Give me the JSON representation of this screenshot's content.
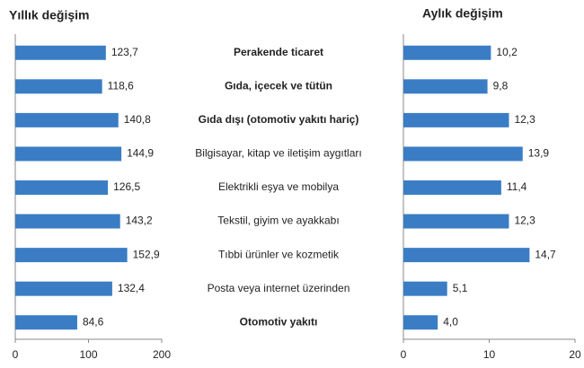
{
  "chart_data": [
    {
      "type": "hbar",
      "title": "Yıllık değişim",
      "color": "#3a7dc4",
      "categories": [
        "Perakende ticaret",
        "Gıda, içecek ve tütün",
        "Gıda dışı (otomotiv yakıtı hariç)",
        "Bilgisayar, kitap ve iletişim aygıtları",
        "Elektrikli eşya ve mobilya",
        "Tekstil, giyim ve ayakkabı",
        "Tıbbi ürünler ve kozmetik",
        "Posta veya internet üzerinden",
        "Otomotiv yakıtı"
      ],
      "values": [
        123.7,
        118.6,
        140.8,
        144.9,
        126.5,
        143.2,
        152.9,
        132.4,
        84.6
      ],
      "value_labels": [
        "123,7",
        "118,6",
        "140,8",
        "144,9",
        "126,5",
        "143,2",
        "152,9",
        "132,4",
        "84,6"
      ],
      "xlim": [
        0,
        200
      ],
      "xticks": [
        0,
        100,
        200
      ]
    },
    {
      "type": "hbar",
      "title": "Aylık değişim",
      "color": "#3a7dc4",
      "values": [
        10.2,
        9.8,
        12.3,
        13.9,
        11.4,
        12.3,
        14.7,
        5.1,
        4.0
      ],
      "value_labels": [
        "10,2",
        "9,8",
        "12,3",
        "13,9",
        "11,4",
        "12,3",
        "14,7",
        "5,1",
        "4,0"
      ],
      "xlim": [
        0,
        20
      ],
      "xticks": [
        0,
        10,
        20
      ]
    }
  ]
}
